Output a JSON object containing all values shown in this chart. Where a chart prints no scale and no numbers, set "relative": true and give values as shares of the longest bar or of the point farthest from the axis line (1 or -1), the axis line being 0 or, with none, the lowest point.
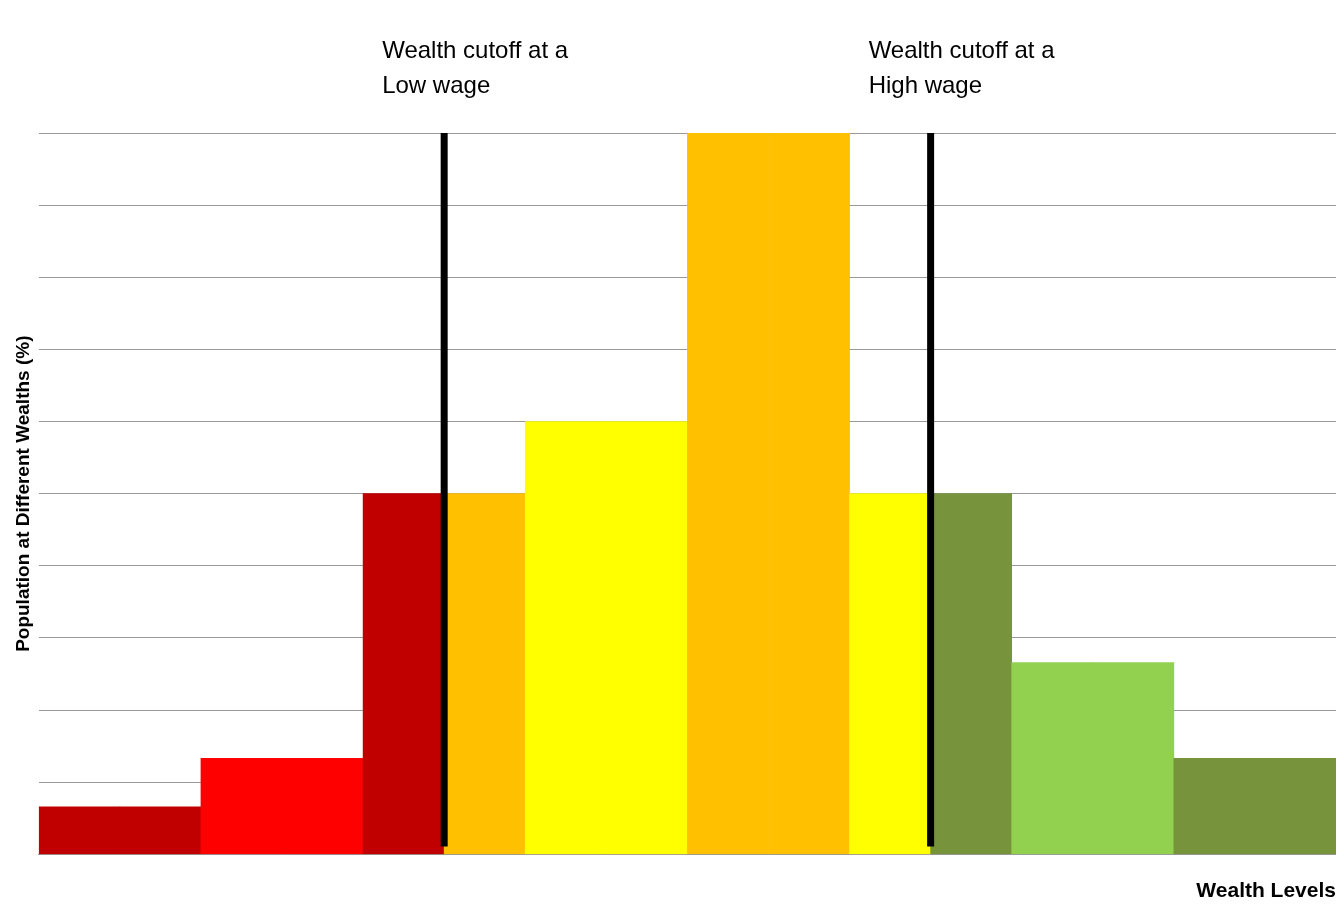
{
  "chart_data": {
    "type": "bar",
    "relative": true,
    "xlabel": "Wealth Levels",
    "ylabel": "Population at Different Wealths (%)",
    "categories": [
      null,
      null,
      null,
      null,
      null,
      null,
      null,
      null,
      null,
      null,
      null,
      null,
      null,
      null,
      null,
      null
    ],
    "values": [
      0.066,
      0.066,
      0.133,
      0.133,
      0.5,
      0.5,
      0.6,
      0.6,
      1,
      1,
      0.5,
      0.5,
      0.266,
      0.266,
      0.133,
      0.133
    ],
    "colors": [
      "#c00000",
      "#c00000",
      "#ff0000",
      "#ff0000",
      "#c00000",
      "#ffc000",
      "#ffff00",
      "#ffff00",
      "#ffc000",
      "#ffc000",
      "#ffff00",
      "#77933c",
      "#92d050",
      "#92d050",
      "#77933c",
      "#77933c"
    ],
    "ref_lines": [
      {
        "axis": "x",
        "label": "Wealth cutoff at a Low wage",
        "color": "#000000"
      },
      {
        "axis": "x",
        "label": "Wealth cutoff at a High wage",
        "color": "#000000"
      }
    ],
    "grid": "y",
    "legend": false
  }
}
